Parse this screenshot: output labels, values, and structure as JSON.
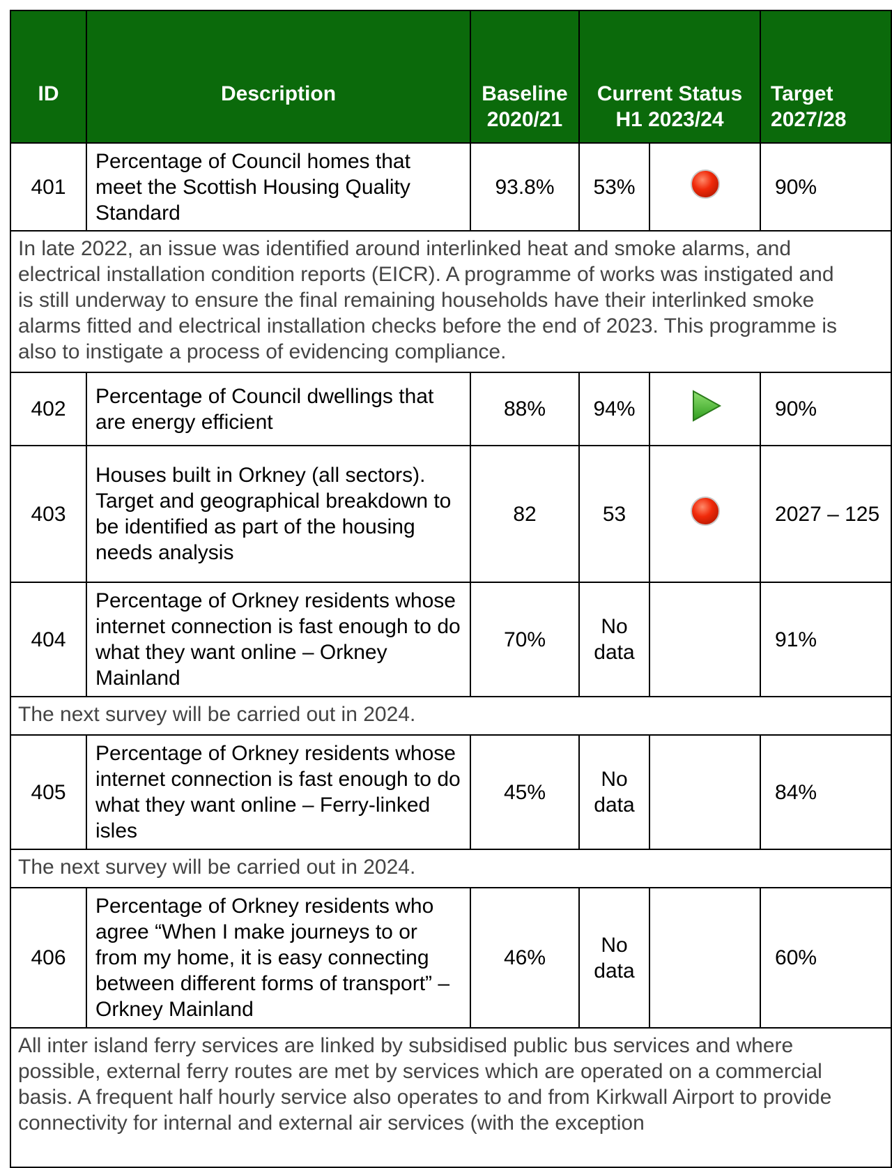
{
  "header": {
    "id": "ID",
    "description": "Description",
    "baseline": "Baseline 2020/21",
    "current": "Current Status H1 2023/24",
    "target": "Target 2027/28"
  },
  "rows": [
    {
      "id": "401",
      "description": "Percentage of Council homes that meet the Scottish Housing Quality Standard",
      "baseline": "93.8%",
      "current": "53%",
      "status": "red",
      "target": "90%",
      "note": "In late 2022, an issue was identified around interlinked heat and smoke alarms, and electrical installation condition reports (EICR). A programme of works was instigated and is still underway to ensure the final remaining households have their interlinked smoke alarms fitted and electrical installation checks before the end of 2023. This programme is also to instigate a process of evidencing compliance."
    },
    {
      "id": "402",
      "description": "Percentage of Council dwellings that are energy efficient",
      "baseline": "88%",
      "current": "94%",
      "status": "green",
      "target": "90%"
    },
    {
      "id": "403",
      "description": "Houses built in Orkney (all sectors). Target and geographical breakdown to be identified as part of the housing needs analysis",
      "baseline": "82",
      "current": "53",
      "status": "red",
      "target": "2027 – 125"
    },
    {
      "id": "404",
      "description": "Percentage of Orkney residents whose internet connection is fast enough to do what they want online – Orkney Mainland",
      "baseline": "70%",
      "current": "No data",
      "target": "91%",
      "note": "The next survey will be carried out in 2024."
    },
    {
      "id": "405",
      "description": "Percentage of Orkney residents whose internet connection is fast enough to do what they want online – Ferry-linked isles",
      "baseline": "45%",
      "current": "No data",
      "target": "84%",
      "note": "The next survey will be carried out in 2024."
    },
    {
      "id": "406",
      "description": "Percentage of Orkney residents who agree “When I make journeys to or from my home, it is easy connecting between different forms of transport” – Orkney Mainland",
      "baseline": "46%",
      "current": "No data",
      "target": "60%",
      "note": "All inter island ferry services are linked by subsidised public bus services and where possible, external ferry routes are met by services which are operated on a commercial basis. A frequent half hourly service also operates to and from Kirkwall Airport to provide connectivity for internal and external air services (with the exception"
    }
  ]
}
